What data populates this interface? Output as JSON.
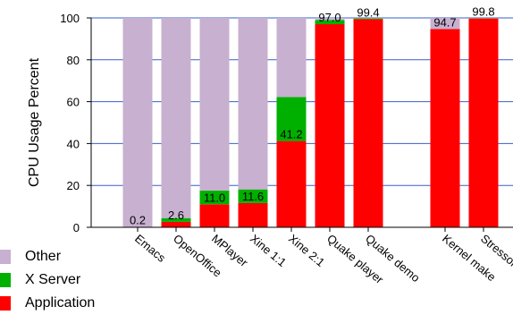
{
  "chart_data": {
    "type": "bar",
    "stacked": true,
    "ylabel": "CPU Usage Percent",
    "xlabel": "",
    "title": "",
    "ylim": [
      0,
      100
    ],
    "yticks": [
      0,
      20,
      40,
      60,
      80,
      100
    ],
    "grid": "horizontal",
    "categories": [
      "Emacs",
      "OpenOffice",
      "MPlayer",
      "Xine 1:1",
      "Xine 2:1",
      "Quake player",
      "Quake demo",
      "",
      "Kernel make",
      "Stressor"
    ],
    "series": [
      {
        "name": "Application",
        "color": "#ff0000",
        "values": [
          0.2,
          2.6,
          11.0,
          11.6,
          41.2,
          97.0,
          99.4,
          0,
          94.7,
          99.8
        ]
      },
      {
        "name": "X Server",
        "color": "#00b000",
        "values": [
          0,
          1.8,
          6.5,
          6.5,
          21.0,
          2.0,
          0.4,
          0,
          0,
          0.1
        ]
      },
      {
        "name": "Other",
        "color": "#c8b0d0",
        "values": [
          99.8,
          95.6,
          82.5,
          81.9,
          37.8,
          1.0,
          0.2,
          0,
          5.3,
          0.1
        ]
      }
    ],
    "value_labels": [
      "0.2",
      "2.6",
      "11.0",
      "11.6",
      "41.2",
      "97.0",
      "99.4",
      "",
      "94.7",
      "99.8"
    ],
    "legend_placement": "bottom-left"
  },
  "legend": [
    {
      "label": "Other",
      "color": "#c8b0d0"
    },
    {
      "label": "X Server",
      "color": "#00b000"
    },
    {
      "label": "Application",
      "color": "#ff0000"
    }
  ]
}
